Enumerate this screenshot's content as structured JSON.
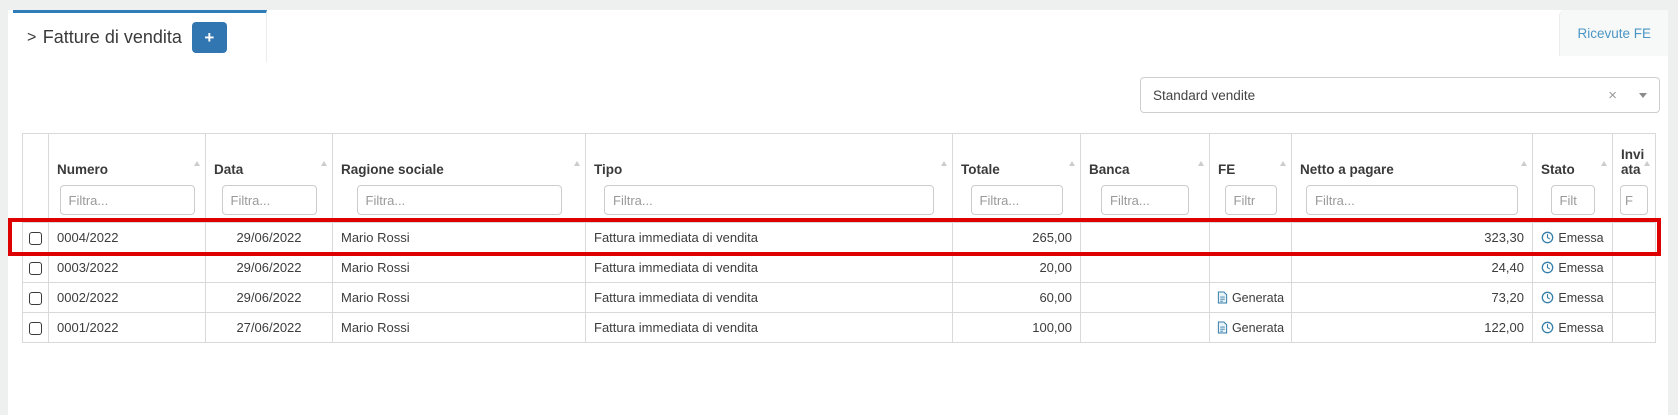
{
  "header": {
    "tab_prefix": ">",
    "tab_title": "Fatture di vendita",
    "add_button_label": "+",
    "ricevute_link": "Ricevute FE"
  },
  "view_selector": {
    "value": "Standard vendite",
    "clear_icon": "×"
  },
  "table": {
    "columns": [
      {
        "id": "select",
        "label": "",
        "filter": null,
        "align": "center"
      },
      {
        "id": "numero",
        "label": "Numero",
        "filter": "Filtra...",
        "align": "left"
      },
      {
        "id": "data",
        "label": "Data",
        "filter": "Filtra...",
        "align": "center"
      },
      {
        "id": "ragione_sociale",
        "label": "Ragione sociale",
        "filter": "Filtra...",
        "align": "left"
      },
      {
        "id": "tipo",
        "label": "Tipo",
        "filter": "Filtra...",
        "align": "left"
      },
      {
        "id": "totale",
        "label": "Totale",
        "filter": "Filtra...",
        "align": "right"
      },
      {
        "id": "banca",
        "label": "Banca",
        "filter": "Filtra...",
        "align": "left"
      },
      {
        "id": "fe",
        "label": "FE",
        "filter": "Filtr",
        "align": "center"
      },
      {
        "id": "netto_a_pagare",
        "label": "Netto a pagare",
        "filter": "Filtra...",
        "align": "right"
      },
      {
        "id": "stato",
        "label": "Stato",
        "filter": "Filt",
        "align": "center"
      },
      {
        "id": "inviata",
        "label": "Inviata",
        "filter": "F",
        "align": "left"
      }
    ],
    "rows": [
      {
        "numero": "0004/2022",
        "data": "29/06/2022",
        "ragione_sociale": "Mario Rossi",
        "tipo": "Fattura immediata di vendita",
        "totale": "265,00",
        "banca": "",
        "fe": "",
        "netto_a_pagare": "323,30",
        "stato": "Emessa",
        "inviata": "",
        "highlighted": true
      },
      {
        "numero": "0003/2022",
        "data": "29/06/2022",
        "ragione_sociale": "Mario Rossi",
        "tipo": "Fattura immediata di vendita",
        "totale": "20,00",
        "banca": "",
        "fe": "",
        "netto_a_pagare": "24,40",
        "stato": "Emessa",
        "inviata": "",
        "highlighted": false
      },
      {
        "numero": "0002/2022",
        "data": "29/06/2022",
        "ragione_sociale": "Mario Rossi",
        "tipo": "Fattura immediata di vendita",
        "totale": "60,00",
        "banca": "",
        "fe": "Generata",
        "netto_a_pagare": "73,20",
        "stato": "Emessa",
        "inviata": "",
        "highlighted": false
      },
      {
        "numero": "0001/2022",
        "data": "27/06/2022",
        "ragione_sociale": "Mario Rossi",
        "tipo": "Fattura immediata di vendita",
        "totale": "100,00",
        "banca": "",
        "fe": "Generata",
        "netto_a_pagare": "122,00",
        "stato": "Emessa",
        "inviata": "",
        "highlighted": false
      }
    ],
    "icons": {
      "status_icon": "clock-icon",
      "fe_icon": "document-icon"
    }
  },
  "colors": {
    "accent_blue": "#2e7cb8",
    "button_blue": "#3276b1",
    "link_blue": "#4b96c5",
    "icon_blue": "#367fa9",
    "highlight_red": "#de0000"
  }
}
